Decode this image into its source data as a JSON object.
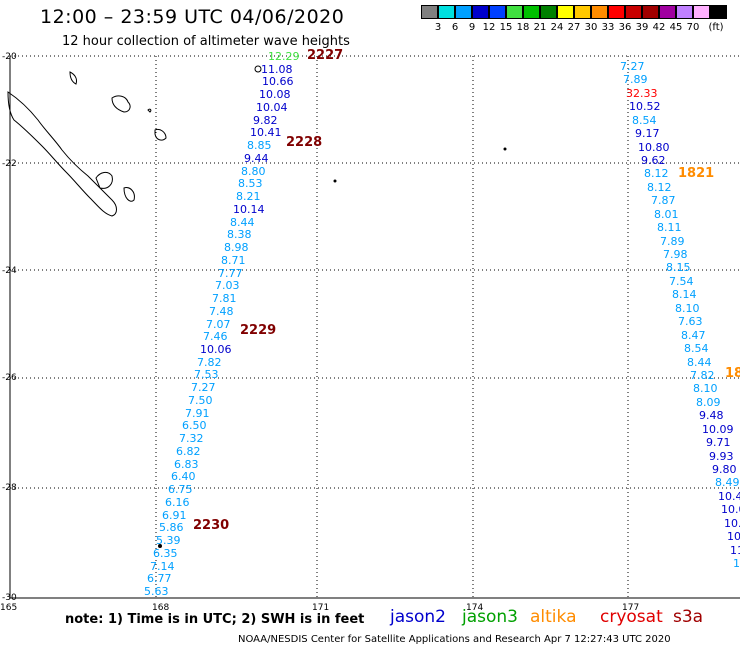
{
  "header": {
    "title": "12:00 – 23:59 UTC 04/06/2020",
    "subtitle": "12 hour collection of altimeter wave heights"
  },
  "scale": {
    "colors": [
      "#808080",
      "#00e0e0",
      "#00a0ff",
      "#0000cc",
      "#0040ff",
      "#40e040",
      "#00c000",
      "#008000",
      "#ffff00",
      "#ffc800",
      "#ff8c00",
      "#ff0000",
      "#c80000",
      "#a00000",
      "#a000a0",
      "#c080ff",
      "#ffb0ff",
      "#000000"
    ],
    "labels": [
      "3",
      "6",
      "9",
      "12",
      "15",
      "18",
      "21",
      "24",
      "27",
      "30",
      "33",
      "36",
      "39",
      "42",
      "45",
      "70",
      "(ft)"
    ]
  },
  "axes": {
    "lat_labels": [
      "-20",
      "-22",
      "-24",
      "-26",
      "-28",
      "-30"
    ],
    "lon_labels": [
      "165",
      "168",
      "171",
      "174",
      "177"
    ]
  },
  "tracks": [
    {
      "values": [
        "12.29",
        "11.08",
        "10.66",
        "10.08",
        "10.04",
        "9.82",
        "10.41",
        "8.85",
        "9.44",
        "8.80",
        "8.53",
        "8.21",
        "10.14",
        "8.44",
        "8.38",
        "8.98",
        "8.71",
        "7.77",
        "7.03",
        "7.81",
        "7.48",
        "7.07",
        "7.46",
        "10.06",
        "7.82",
        "7.53",
        "7.27",
        "7.50",
        "7.91",
        "6.50",
        "7.32",
        "6.82",
        "6.83",
        "6.40",
        "6.75",
        "6.16",
        "6.91",
        "5.86",
        "5.39",
        "6.35",
        "7.14",
        "6.77",
        "5.63"
      ]
    },
    {
      "values": [
        "7.27",
        "7.89",
        "32.33",
        "10.52",
        "8.54",
        "9.17",
        "10.80",
        "9.62",
        "8.12",
        "8.12",
        "7.87",
        "8.01",
        "8.11",
        "7.89",
        "7.98",
        "8.15",
        "7.54",
        "8.14",
        "8.10",
        "7.63",
        "8.47",
        "8.54",
        "8.44",
        "7.82",
        "8.10",
        "8.09",
        "9.48",
        "10.09",
        "9.71",
        "9.93",
        "9.80",
        "8.49",
        "10.4",
        "10.0",
        "10.",
        "10",
        "11",
        "1"
      ]
    }
  ],
  "time_labels": [
    "2227",
    "2228",
    "2229",
    "2230",
    "1821",
    "18"
  ],
  "footer": {
    "note": "note:  1) Time is in UTC;  2) SWH is in feet",
    "satellites": [
      "jason2",
      "jason3",
      "altika",
      "cryosat",
      "s3a"
    ],
    "sat_colors": [
      "#0000cc",
      "#00a000",
      "#ff8c00",
      "#e00000",
      "#a00000"
    ],
    "credit": "NOAA/NESDIS Center for Satellite Applications and Research   Apr  7 12:27:43 UTC 2020"
  }
}
